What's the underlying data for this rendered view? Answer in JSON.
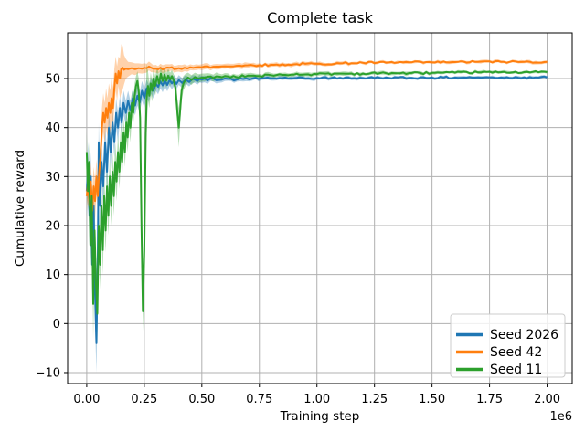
{
  "figure": {
    "background": "#ffffff",
    "grid_color": "#b0b0b0",
    "spine_color": "#000000",
    "legend_edge_color": "#cccccc",
    "legend_face_color": "#ffffff"
  },
  "chart_data": {
    "type": "line",
    "title": "Complete task",
    "xlabel": "Training step",
    "ylabel": "Cumulative reward",
    "x_offset_text": "1e6",
    "grid": true,
    "legend_position": "lower right",
    "xlim": [
      -0.083,
      2.109
    ],
    "ylim": [
      -12.24,
      59.32
    ],
    "xtick_values": [
      0.0,
      0.25,
      0.5,
      0.75,
      1.0,
      1.25,
      1.5,
      1.75,
      2.0
    ],
    "xtick_labels": [
      "0.00",
      "0.25",
      "0.50",
      "0.75",
      "1.00",
      "1.25",
      "1.50",
      "1.75",
      "2.00"
    ],
    "ytick_values": [
      -10,
      0,
      10,
      20,
      30,
      40,
      50
    ],
    "ytick_labels": [
      "−10",
      "0",
      "10",
      "20",
      "30",
      "40",
      "50"
    ],
    "x_units": "1e6 training steps",
    "band_opacity": 0.35,
    "series": [
      {
        "name": "Seed 2026",
        "color": "#1f77b4",
        "points": [
          [
            0.0,
            27,
            5
          ],
          [
            0.006,
            32,
            5
          ],
          [
            0.012,
            22,
            6
          ],
          [
            0.018,
            30,
            5
          ],
          [
            0.024,
            12,
            6
          ],
          [
            0.03,
            24,
            5
          ],
          [
            0.036,
            6,
            6
          ],
          [
            0.042,
            -4,
            6
          ],
          [
            0.048,
            14,
            6
          ],
          [
            0.052,
            37,
            4
          ],
          [
            0.058,
            24,
            5
          ],
          [
            0.064,
            33,
            4
          ],
          [
            0.072,
            28,
            4
          ],
          [
            0.08,
            37,
            4
          ],
          [
            0.088,
            31,
            4
          ],
          [
            0.096,
            40,
            3.5
          ],
          [
            0.104,
            35,
            3.5
          ],
          [
            0.112,
            41,
            3
          ],
          [
            0.12,
            37,
            3
          ],
          [
            0.128,
            43,
            3
          ],
          [
            0.136,
            40,
            3
          ],
          [
            0.144,
            44,
            2.5
          ],
          [
            0.152,
            41,
            2.5
          ],
          [
            0.16,
            45,
            2.5
          ],
          [
            0.17,
            43,
            2.5
          ],
          [
            0.18,
            45.5,
            2
          ],
          [
            0.19,
            43.5,
            2
          ],
          [
            0.2,
            46,
            2
          ],
          [
            0.21,
            44.5,
            2
          ],
          [
            0.22,
            46.5,
            2
          ],
          [
            0.23,
            45,
            2
          ],
          [
            0.24,
            47.5,
            2
          ],
          [
            0.25,
            46,
            2
          ],
          [
            0.26,
            48,
            1.8
          ],
          [
            0.27,
            47,
            1.8
          ],
          [
            0.28,
            48.5,
            1.6
          ],
          [
            0.29,
            47.5,
            1.6
          ],
          [
            0.3,
            49,
            1.5
          ],
          [
            0.31,
            48.3,
            1.5
          ],
          [
            0.32,
            49.4,
            1.4
          ],
          [
            0.33,
            48.6,
            1.4
          ],
          [
            0.34,
            49.6,
            1.3
          ],
          [
            0.35,
            48.7,
            1.3
          ],
          [
            0.36,
            49.7,
            1.2
          ],
          [
            0.37,
            49,
            1.2
          ],
          [
            0.38,
            49.6,
            1.1
          ],
          [
            0.39,
            48.9,
            1.1
          ],
          [
            0.4,
            49.7,
            1
          ],
          [
            0.415,
            49.1,
            1
          ],
          [
            0.43,
            49.8,
            0.9
          ],
          [
            0.445,
            49.3,
            0.9
          ],
          [
            0.46,
            49.9,
            0.8
          ],
          [
            0.48,
            49.5,
            0.8
          ],
          [
            0.5,
            49.8,
            0.7
          ],
          [
            0.525,
            49.6,
            0.7
          ],
          [
            0.55,
            50,
            0.6
          ],
          [
            0.575,
            49.7,
            0.6
          ],
          [
            0.6,
            50,
            0.5
          ],
          [
            0.64,
            49.6,
            0.5
          ],
          [
            0.68,
            49.9,
            0.5
          ],
          [
            0.72,
            50,
            0.4
          ],
          [
            0.76,
            50.1,
            0.4
          ],
          [
            0.8,
            50,
            0.4
          ],
          [
            0.85,
            50.1,
            0.4
          ],
          [
            0.9,
            50.1,
            0.35
          ],
          [
            0.95,
            50,
            0.35
          ],
          [
            1.0,
            50.1,
            0.35
          ],
          [
            1.1,
            50.15,
            0.3
          ],
          [
            1.2,
            50.1,
            0.3
          ],
          [
            1.3,
            50.2,
            0.3
          ],
          [
            1.4,
            50.15,
            0.3
          ],
          [
            1.5,
            50.2,
            0.3
          ],
          [
            1.6,
            50.2,
            0.3
          ],
          [
            1.7,
            50.25,
            0.3
          ],
          [
            1.8,
            50.2,
            0.3
          ],
          [
            1.9,
            50.25,
            0.3
          ],
          [
            2.0,
            50.25,
            0.3
          ]
        ]
      },
      {
        "name": "Seed 42",
        "color": "#ff7f0e",
        "points": [
          [
            0.0,
            26,
            3
          ],
          [
            0.006,
            29,
            3
          ],
          [
            0.012,
            24,
            4
          ],
          [
            0.018,
            29,
            4
          ],
          [
            0.024,
            23,
            4
          ],
          [
            0.03,
            28,
            4
          ],
          [
            0.036,
            25,
            4
          ],
          [
            0.042,
            30,
            3.5
          ],
          [
            0.048,
            26,
            3.5
          ],
          [
            0.054,
            31,
            3
          ],
          [
            0.06,
            34,
            3
          ],
          [
            0.066,
            40,
            4
          ],
          [
            0.072,
            43,
            4
          ],
          [
            0.078,
            41,
            4
          ],
          [
            0.084,
            44,
            4
          ],
          [
            0.09,
            42,
            4
          ],
          [
            0.096,
            45,
            4
          ],
          [
            0.102,
            43,
            4.5
          ],
          [
            0.108,
            46,
            4.5
          ],
          [
            0.114,
            44,
            4
          ],
          [
            0.12,
            48,
            4
          ],
          [
            0.126,
            51,
            3.5
          ],
          [
            0.132,
            49,
            3.5
          ],
          [
            0.138,
            51.5,
            3
          ],
          [
            0.144,
            50,
            4
          ],
          [
            0.15,
            52,
            5
          ],
          [
            0.156,
            52.2,
            4.5
          ],
          [
            0.162,
            51.8,
            3
          ],
          [
            0.17,
            52,
            2
          ],
          [
            0.18,
            51.9,
            1.5
          ],
          [
            0.195,
            52.1,
            1.2
          ],
          [
            0.21,
            51.9,
            1.2
          ],
          [
            0.225,
            52.1,
            1
          ],
          [
            0.24,
            52,
            1
          ],
          [
            0.26,
            52.1,
            0.9
          ],
          [
            0.28,
            52.2,
            0.9
          ],
          [
            0.3,
            52,
            0.8
          ],
          [
            0.32,
            52.2,
            0.8
          ],
          [
            0.34,
            52.1,
            0.8
          ],
          [
            0.36,
            52.2,
            0.7
          ],
          [
            0.38,
            51.9,
            0.7
          ],
          [
            0.4,
            52.1,
            0.7
          ],
          [
            0.425,
            52.2,
            0.7
          ],
          [
            0.45,
            52.3,
            0.6
          ],
          [
            0.475,
            52.3,
            0.6
          ],
          [
            0.5,
            52.3,
            0.6
          ],
          [
            0.55,
            52.4,
            0.5
          ],
          [
            0.6,
            52.5,
            0.5
          ],
          [
            0.65,
            52.6,
            0.5
          ],
          [
            0.7,
            52.7,
            0.5
          ],
          [
            0.75,
            52.7,
            0.4
          ],
          [
            0.8,
            52.8,
            0.4
          ],
          [
            0.85,
            52.9,
            0.4
          ],
          [
            0.9,
            52.9,
            0.4
          ],
          [
            0.95,
            53,
            0.4
          ],
          [
            1.0,
            53,
            0.35
          ],
          [
            1.1,
            53.1,
            0.35
          ],
          [
            1.2,
            53.2,
            0.3
          ],
          [
            1.3,
            53.25,
            0.3
          ],
          [
            1.4,
            53.3,
            0.3
          ],
          [
            1.5,
            53.3,
            0.3
          ],
          [
            1.6,
            53.35,
            0.3
          ],
          [
            1.7,
            53.4,
            0.3
          ],
          [
            1.8,
            53.4,
            0.3
          ],
          [
            1.9,
            53.4,
            0.3
          ],
          [
            2.0,
            53.4,
            0.3
          ]
        ]
      },
      {
        "name": "Seed 11",
        "color": "#2ca02c",
        "points": [
          [
            0.0,
            35,
            4
          ],
          [
            0.005,
            27,
            4
          ],
          [
            0.01,
            33,
            4
          ],
          [
            0.016,
            16,
            6
          ],
          [
            0.022,
            26,
            5
          ],
          [
            0.028,
            4,
            7
          ],
          [
            0.034,
            19,
            6
          ],
          [
            0.04,
            8,
            6
          ],
          [
            0.046,
            2,
            6
          ],
          [
            0.052,
            20,
            5
          ],
          [
            0.058,
            12,
            5
          ],
          [
            0.064,
            24,
            5
          ],
          [
            0.07,
            15,
            5
          ],
          [
            0.076,
            26,
            4.5
          ],
          [
            0.082,
            19,
            4.5
          ],
          [
            0.088,
            28,
            4.5
          ],
          [
            0.094,
            22,
            4
          ],
          [
            0.1,
            30,
            4
          ],
          [
            0.106,
            24,
            4
          ],
          [
            0.112,
            31,
            4
          ],
          [
            0.118,
            26,
            4
          ],
          [
            0.124,
            33,
            4
          ],
          [
            0.13,
            29,
            4
          ],
          [
            0.136,
            35,
            3.5
          ],
          [
            0.142,
            31,
            3.5
          ],
          [
            0.148,
            37,
            3.5
          ],
          [
            0.154,
            33,
            3.5
          ],
          [
            0.16,
            39,
            3
          ],
          [
            0.166,
            35,
            3
          ],
          [
            0.172,
            41,
            3
          ],
          [
            0.178,
            38,
            3
          ],
          [
            0.184,
            43,
            3
          ],
          [
            0.19,
            40,
            3
          ],
          [
            0.196,
            45,
            2.5
          ],
          [
            0.202,
            43,
            2.5
          ],
          [
            0.208,
            46.5,
            2.5
          ],
          [
            0.214,
            48.5,
            2
          ],
          [
            0.22,
            49.5,
            2
          ],
          [
            0.226,
            47.5,
            2.5
          ],
          [
            0.232,
            42,
            3
          ],
          [
            0.238,
            20,
            4
          ],
          [
            0.244,
            2.5,
            4
          ],
          [
            0.25,
            15,
            6
          ],
          [
            0.256,
            38,
            8
          ],
          [
            0.26,
            46,
            7
          ],
          [
            0.266,
            48.5,
            3
          ],
          [
            0.272,
            46.5,
            2.5
          ],
          [
            0.278,
            49,
            2.2
          ],
          [
            0.284,
            47.5,
            2.2
          ],
          [
            0.29,
            50,
            2
          ],
          [
            0.298,
            48.5,
            2
          ],
          [
            0.306,
            50.5,
            1.8
          ],
          [
            0.314,
            49,
            1.8
          ],
          [
            0.322,
            51,
            1.6
          ],
          [
            0.33,
            49.5,
            1.6
          ],
          [
            0.338,
            50.8,
            1.5
          ],
          [
            0.346,
            49.6,
            1.5
          ],
          [
            0.354,
            50.6,
            1.4
          ],
          [
            0.362,
            49.8,
            1.4
          ],
          [
            0.37,
            50.5,
            1.3
          ],
          [
            0.378,
            49.6,
            1.3
          ],
          [
            0.386,
            48,
            1.5
          ],
          [
            0.394,
            43,
            3
          ],
          [
            0.4,
            40,
            4
          ],
          [
            0.406,
            43.5,
            3
          ],
          [
            0.412,
            47.5,
            2
          ],
          [
            0.42,
            49,
            1.5
          ],
          [
            0.43,
            49.8,
            1.2
          ],
          [
            0.44,
            50.2,
            1
          ],
          [
            0.455,
            49.7,
            1
          ],
          [
            0.47,
            50.3,
            0.9
          ],
          [
            0.485,
            50,
            0.9
          ],
          [
            0.5,
            50.2,
            0.8
          ],
          [
            0.525,
            50.4,
            0.7
          ],
          [
            0.55,
            50.1,
            0.7
          ],
          [
            0.575,
            50.4,
            0.6
          ],
          [
            0.6,
            50.5,
            0.6
          ],
          [
            0.65,
            50.3,
            0.5
          ],
          [
            0.7,
            50.6,
            0.5
          ],
          [
            0.75,
            50.5,
            0.45
          ],
          [
            0.8,
            50.7,
            0.45
          ],
          [
            0.85,
            50.75,
            0.4
          ],
          [
            0.9,
            50.8,
            0.4
          ],
          [
            0.95,
            50.85,
            0.4
          ],
          [
            1.0,
            50.9,
            0.4
          ],
          [
            1.1,
            51,
            0.35
          ],
          [
            1.2,
            51,
            0.35
          ],
          [
            1.3,
            51.1,
            0.35
          ],
          [
            1.4,
            51.1,
            0.35
          ],
          [
            1.5,
            51.15,
            0.3
          ],
          [
            1.6,
            51.2,
            0.3
          ],
          [
            1.7,
            51.25,
            0.3
          ],
          [
            1.8,
            51.3,
            0.3
          ],
          [
            1.9,
            51.3,
            0.3
          ],
          [
            2.0,
            51.3,
            0.3
          ]
        ]
      }
    ]
  }
}
